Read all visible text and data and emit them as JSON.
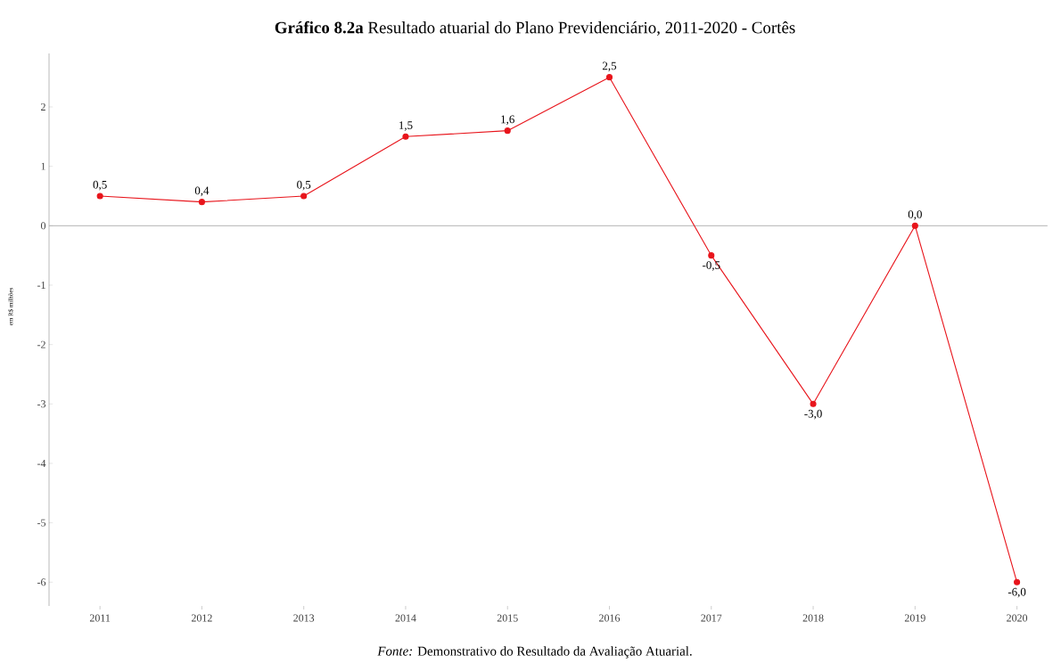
{
  "chart_data": {
    "type": "line",
    "title": "**Gráfico 8.2a** Resultado atuarial do Plano Previdenciário, 2011-2020 - Cortês",
    "ylabel": "em R$ milhões",
    "annotations": [
      "*Fonte:* Demonstrativo do Resultado da Avaliação Atuarial."
    ],
    "categories": [
      "2011",
      "2012",
      "2013",
      "2014",
      "2015",
      "2016",
      "2017",
      "2018",
      "2019",
      "2020"
    ],
    "values": [
      0.5,
      0.4,
      0.5,
      1.5,
      1.6,
      2.5,
      -0.5,
      -3.0,
      0.0,
      -6.0
    ],
    "value_labels": [
      "0,5",
      "0,4",
      "0,5",
      "1,5",
      "1,6",
      "2,5",
      "-0,5",
      "-3,0",
      "0,0",
      "-6,0"
    ],
    "color": "#e8141b",
    "marker": "circle",
    "ylim": [
      -6.4,
      2.9
    ],
    "yticks": [
      -6,
      -5,
      -4,
      -3,
      -2,
      -1,
      0,
      1,
      2
    ],
    "ref_lines": [
      {
        "axis": "y",
        "value": 0,
        "color": "#b3b3b3"
      }
    ]
  }
}
